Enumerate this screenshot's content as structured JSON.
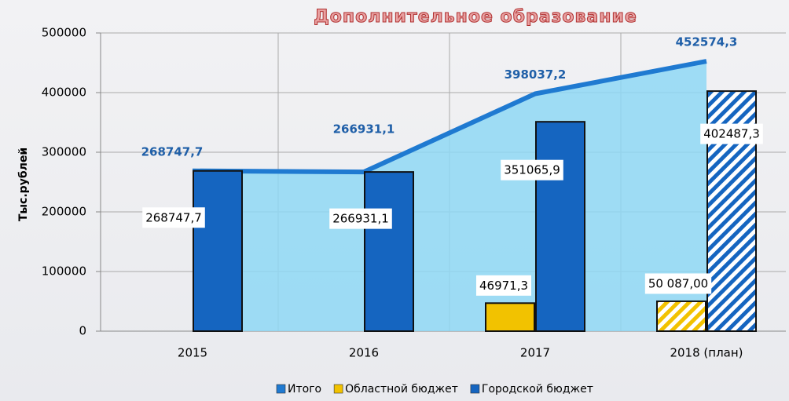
{
  "chart_data": {
    "type": "area-bar",
    "title": "Дополнительное образование",
    "y_label": "Тыс.рублей",
    "categories": [
      "2015",
      "2016",
      "2017",
      "2018 (план)"
    ],
    "series": [
      {
        "name": "Итого",
        "kind": "area",
        "color": "#1f7ad1",
        "values": [
          268747.7,
          266931.1,
          398037.2,
          452574.3
        ],
        "value_labels": [
          "268747,7",
          "266931,1",
          "398037,2",
          "452574,3"
        ]
      },
      {
        "name": "Областной бюджет",
        "kind": "bar",
        "color": "#f2c200",
        "values": [
          null,
          null,
          46971.3,
          50087.0
        ],
        "value_labels": [
          null,
          null,
          "46971,3",
          "50 087,00"
        ]
      },
      {
        "name": "Городской бюджет",
        "kind": "bar",
        "color": "#1565c0",
        "values": [
          268747.7,
          266931.1,
          351065.9,
          402487.3
        ],
        "value_labels": [
          "268747,7",
          "266931,1",
          "351065,9",
          "402487,3"
        ]
      }
    ],
    "ylim": [
      0,
      500000
    ],
    "yticks": [
      0,
      100000,
      200000,
      300000,
      400000,
      500000
    ],
    "grid": true,
    "legend": "bottom"
  }
}
